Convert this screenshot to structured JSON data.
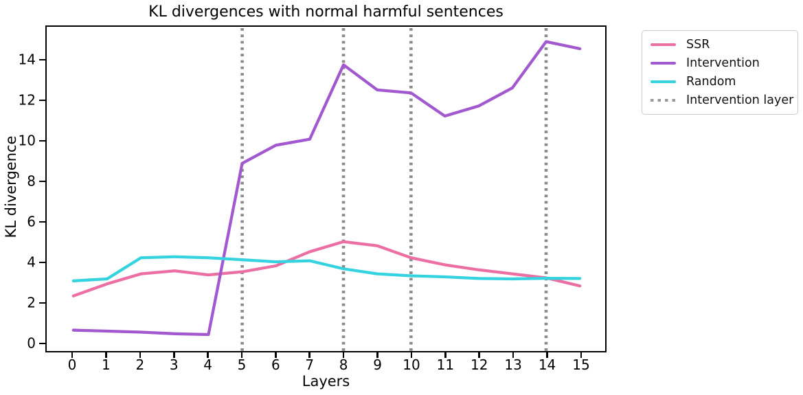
{
  "chart_data": {
    "type": "line",
    "title": "KL divergences with normal harmful sentences",
    "xlabel": "Layers",
    "ylabel": "KL divergence",
    "x": [
      0,
      1,
      2,
      3,
      4,
      5,
      6,
      7,
      8,
      9,
      10,
      11,
      12,
      13,
      14,
      15
    ],
    "series": [
      {
        "name": "SSR",
        "color": "#ec6fa4",
        "values": [
          2.3,
          2.9,
          3.4,
          3.55,
          3.35,
          3.5,
          3.8,
          4.5,
          5.0,
          4.8,
          4.2,
          3.85,
          3.6,
          3.4,
          3.2,
          2.8
        ]
      },
      {
        "name": "Intervention",
        "color": "#a259cf",
        "values": [
          0.6,
          0.55,
          0.5,
          0.42,
          0.38,
          8.9,
          9.8,
          10.1,
          13.8,
          12.55,
          12.4,
          11.25,
          11.75,
          12.65,
          14.95,
          14.6
        ]
      },
      {
        "name": "Random",
        "color": "#35d3e0",
        "values": [
          3.05,
          3.15,
          4.2,
          4.25,
          4.2,
          4.1,
          4.0,
          4.05,
          3.65,
          3.4,
          3.3,
          3.25,
          3.17,
          3.15,
          3.18,
          3.17
        ]
      }
    ],
    "vlines": {
      "name": "Intervention layer",
      "color": "#8a8a8a",
      "style": "dotted",
      "x": [
        5,
        8,
        10,
        14
      ]
    },
    "xticks": [
      0,
      1,
      2,
      3,
      4,
      5,
      6,
      7,
      8,
      9,
      10,
      11,
      12,
      13,
      14,
      15
    ],
    "yticks": [
      0,
      2,
      4,
      6,
      8,
      10,
      12,
      14
    ],
    "xlim": [
      -0.79,
      15.75
    ],
    "ylim": [
      -0.44,
      15.69
    ],
    "grid": false,
    "legend_position": "outside-right",
    "line_width": 4.3
  },
  "colors": {
    "spine": "#000000",
    "legend_border": "#cccccc",
    "background": "#ffffff"
  }
}
